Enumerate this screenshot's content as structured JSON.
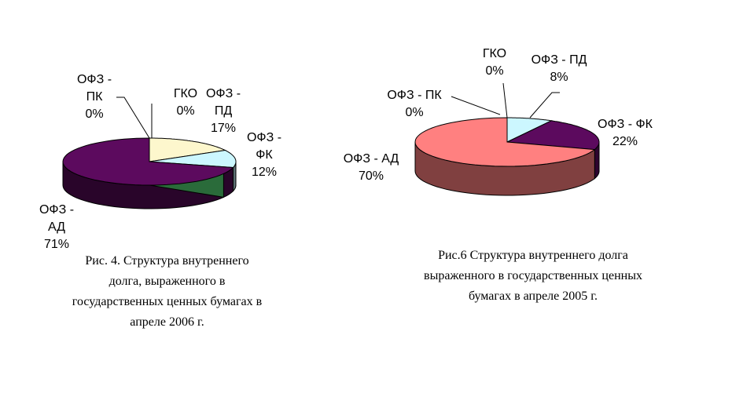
{
  "chart_data": [
    {
      "type": "pie",
      "style": "3d",
      "slices": [
        {
          "name_lines": [
            "ГКО"
          ],
          "value_label": "0%",
          "value": 0,
          "color": "#fffcd9"
        },
        {
          "name_lines": [
            "ОФЗ -",
            "ПД"
          ],
          "value_label": "17%",
          "value": 17,
          "color": "#fdf7cd"
        },
        {
          "name_lines": [
            "ОФЗ -",
            "ФК"
          ],
          "value_label": "12%",
          "value": 12,
          "color": "#ccf7ff"
        },
        {
          "name_lines": [
            "ОФЗ -",
            "АД"
          ],
          "value_label": "71%",
          "value": 71,
          "color": "#5c0a5e"
        },
        {
          "name_lines": [
            "ОФЗ -",
            "ПК"
          ],
          "value_label": "0%",
          "value": 0,
          "color": "#ffffff"
        }
      ],
      "caption_lines": [
        "Рис. 4. Структура внутреннего",
        "долга, выраженного в",
        "государственных ценных бумагах в",
        "апреле 2006 г."
      ]
    },
    {
      "type": "pie",
      "style": "3d",
      "slices": [
        {
          "name_lines": [
            "ГКО"
          ],
          "value_label": "0%",
          "value": 0,
          "color": "#fffcd9"
        },
        {
          "name_lines": [
            "ОФЗ - ПД"
          ],
          "value_label": "8%",
          "value": 8,
          "color": "#ccf7ff"
        },
        {
          "name_lines": [
            "ОФЗ - ФК"
          ],
          "value_label": "22%",
          "value": 22,
          "color": "#5c0a5e"
        },
        {
          "name_lines": [
            "ОФЗ - АД"
          ],
          "value_label": "70%",
          "value": 70,
          "color": "#ff8080"
        },
        {
          "name_lines": [
            "ОФЗ - ПК"
          ],
          "value_label": "0%",
          "value": 0,
          "color": "#ffffff"
        }
      ],
      "caption_lines": [
        "Рис.6 Структура внутреннего долга",
        "выраженного в государственных ценных",
        "бумагах в апреле 2005 г."
      ]
    }
  ]
}
